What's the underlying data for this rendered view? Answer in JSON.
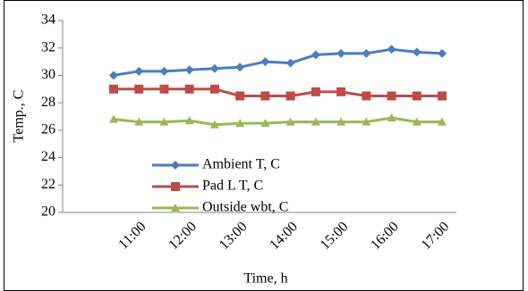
{
  "chart_data": {
    "type": "line",
    "x_label": "Time, h",
    "y_label": "Temp., C",
    "categories": [
      null,
      "11:00",
      null,
      "12:00",
      null,
      "13:00",
      null,
      "14:00",
      null,
      "15:00",
      null,
      "16:00",
      null,
      "17:00"
    ],
    "series": [
      {
        "name": "Ambient T,  C",
        "color": "#4a7ebb",
        "marker": "diamond",
        "values": [
          30.0,
          30.3,
          30.3,
          30.4,
          30.5,
          30.6,
          31.0,
          30.9,
          31.5,
          31.6,
          31.6,
          31.9,
          31.7,
          31.6
        ]
      },
      {
        "name": "Pad L  T,  C",
        "color": "#be4b48",
        "marker": "square",
        "values": [
          29.0,
          29.0,
          29.0,
          29.0,
          29.0,
          28.5,
          28.5,
          28.5,
          28.8,
          28.8,
          28.5,
          28.5,
          28.5,
          28.5
        ]
      },
      {
        "name": "Outside  wbt,  C",
        "color": "#98b954",
        "marker": "triangle",
        "values": [
          26.8,
          26.6,
          26.6,
          26.7,
          26.4,
          26.5,
          26.5,
          26.6,
          26.6,
          26.6,
          26.6,
          26.9,
          26.6,
          26.6
        ]
      }
    ],
    "ylim": [
      20,
      34
    ],
    "yticks": [
      20,
      22,
      24,
      26,
      28,
      30,
      32,
      34
    ],
    "grid": false
  }
}
